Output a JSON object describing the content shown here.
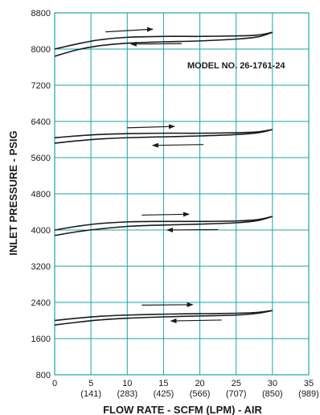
{
  "chart_data": {
    "type": "line",
    "title": "",
    "xlabel": "FLOW RATE - SCFM (LPM) - AIR",
    "ylabel": "INLET PRESSURE - PSIG",
    "annotation": "MODEL NO. 26-1761-24",
    "xlim": [
      0,
      35
    ],
    "ylim": [
      800,
      8800
    ],
    "grid": true,
    "colors": {
      "grid": "#1aa6a6",
      "curve": "#1a1a1a",
      "text": "#1a1a1a"
    },
    "x_ticks": [
      {
        "value": 0,
        "label": "0",
        "sub": ""
      },
      {
        "value": 5,
        "label": "5",
        "sub": "(141)"
      },
      {
        "value": 10,
        "label": "10",
        "sub": "(283)"
      },
      {
        "value": 15,
        "label": "15",
        "sub": "(425)"
      },
      {
        "value": 20,
        "label": "20",
        "sub": "(566)"
      },
      {
        "value": 25,
        "label": "25",
        "sub": "(707)"
      },
      {
        "value": 30,
        "label": "30",
        "sub": "(850)"
      },
      {
        "value": 35,
        "label": "35",
        "sub": "(989)"
      }
    ],
    "y_ticks": [
      {
        "value": 800,
        "label": "800"
      },
      {
        "value": 1600,
        "label": "1600"
      },
      {
        "value": 2400,
        "label": "2400"
      },
      {
        "value": 3200,
        "label": "3200"
      },
      {
        "value": 4000,
        "label": "4000"
      },
      {
        "value": 4800,
        "label": "4800"
      },
      {
        "value": 5600,
        "label": "5600"
      },
      {
        "value": 6400,
        "label": "6400"
      },
      {
        "value": 7200,
        "label": "7200"
      },
      {
        "value": 8000,
        "label": "8000"
      },
      {
        "value": 8800,
        "label": "8800"
      }
    ],
    "series": [
      {
        "x": [
          0,
          3,
          6,
          10,
          15,
          20,
          25,
          28,
          30
        ],
        "y": [
          8000,
          8110,
          8200,
          8260,
          8280,
          8280,
          8290,
          8310,
          8370
        ]
      },
      {
        "x": [
          0,
          3,
          6,
          10,
          15,
          20,
          25,
          28,
          30
        ],
        "y": [
          7840,
          7980,
          8070,
          8130,
          8160,
          8180,
          8220,
          8270,
          8370
        ]
      },
      {
        "x": [
          0,
          3,
          6,
          10,
          15,
          20,
          25,
          28,
          30
        ],
        "y": [
          6040,
          6080,
          6110,
          6130,
          6140,
          6140,
          6150,
          6170,
          6220
        ]
      },
      {
        "x": [
          0,
          3,
          6,
          10,
          15,
          20,
          25,
          28,
          30
        ],
        "y": [
          5920,
          5970,
          6010,
          6040,
          6060,
          6080,
          6110,
          6150,
          6220
        ]
      },
      {
        "x": [
          0,
          3,
          6,
          10,
          15,
          20,
          25,
          28,
          30
        ],
        "y": [
          4000,
          4080,
          4140,
          4180,
          4190,
          4190,
          4200,
          4230,
          4300
        ]
      },
      {
        "x": [
          0,
          3,
          6,
          10,
          15,
          20,
          25,
          28,
          30
        ],
        "y": [
          3880,
          3960,
          4020,
          4080,
          4110,
          4130,
          4160,
          4210,
          4300
        ]
      },
      {
        "x": [
          0,
          3,
          6,
          10,
          15,
          20,
          25,
          28,
          30
        ],
        "y": [
          2000,
          2050,
          2090,
          2120,
          2140,
          2150,
          2160,
          2180,
          2220
        ]
      },
      {
        "x": [
          0,
          3,
          6,
          10,
          15,
          20,
          25,
          28,
          30
        ],
        "y": [
          1900,
          1960,
          2010,
          2050,
          2080,
          2100,
          2120,
          2160,
          2220
        ]
      }
    ],
    "arrows": [
      {
        "from": [
          7,
          8380
        ],
        "to": [
          13.5,
          8440
        ]
      },
      {
        "from": [
          17.5,
          8120
        ],
        "to": [
          10.5,
          8110
        ]
      },
      {
        "from": [
          10,
          6260
        ],
        "to": [
          16.5,
          6290
        ]
      },
      {
        "from": [
          20.5,
          5890
        ],
        "to": [
          13.5,
          5870
        ]
      },
      {
        "from": [
          12,
          4330
        ],
        "to": [
          18.5,
          4350
        ]
      },
      {
        "from": [
          22.5,
          4010
        ],
        "to": [
          15.5,
          4000
        ]
      },
      {
        "from": [
          12,
          2340
        ],
        "to": [
          19,
          2350
        ]
      },
      {
        "from": [
          23,
          2010
        ],
        "to": [
          16,
          1990
        ]
      }
    ]
  }
}
